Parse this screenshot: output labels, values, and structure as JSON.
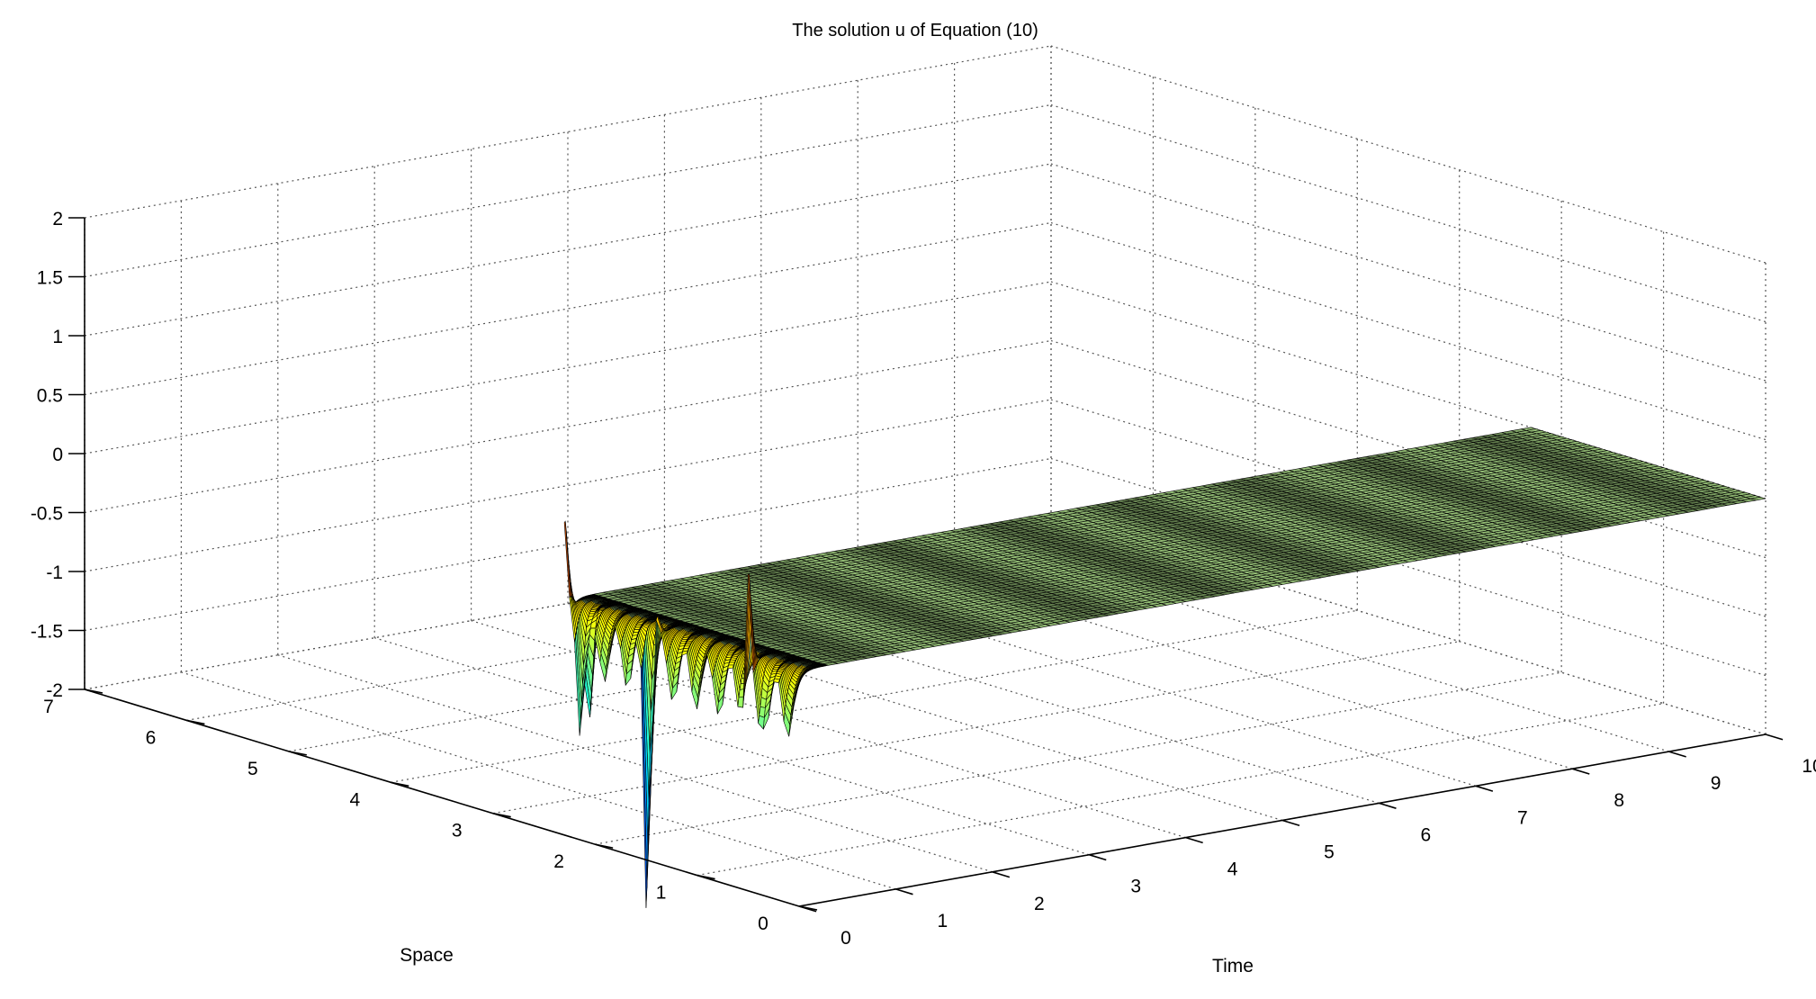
{
  "chart_data": {
    "type": "surface",
    "title": "The solution u of Equation (10)",
    "xlabel": "Time",
    "ylabel": "Space",
    "zlabel": "",
    "xlim": [
      0,
      10
    ],
    "ylim": [
      0,
      7
    ],
    "zlim": [
      -2,
      2
    ],
    "x_ticks": [
      "0",
      "1",
      "2",
      "3",
      "4",
      "5",
      "6",
      "7",
      "8",
      "9",
      "10"
    ],
    "y_ticks": [
      "0",
      "1",
      "2",
      "3",
      "4",
      "5",
      "6",
      "7"
    ],
    "z_ticks": [
      "-2",
      "-1.5",
      "-1",
      "-0.5",
      "0",
      "0.5",
      "1",
      "1.5",
      "2"
    ],
    "grid": true,
    "colormap": "jet",
    "surface": {
      "time_range": [
        0,
        10
      ],
      "space_range": [
        0,
        2.3
      ],
      "steady_value": 0,
      "time_oscillation_cycles": 8,
      "peaks": [
        {
          "time": 0,
          "space": 2.3,
          "u": 1.0
        },
        {
          "time": 0,
          "space": 2.15,
          "u": -0.55
        },
        {
          "time": 0,
          "space": 2.05,
          "u": -0.75
        },
        {
          "time": 0,
          "space": 1.5,
          "u": -1.9
        },
        {
          "time": 0,
          "space": 1.45,
          "u": -0.45
        },
        {
          "time": 0,
          "space": 1.4,
          "u": 0.45
        },
        {
          "time": 0,
          "space": 0.5,
          "u": 1.0
        },
        {
          "time": 0,
          "space": 0.42,
          "u": -0.35
        }
      ]
    }
  }
}
